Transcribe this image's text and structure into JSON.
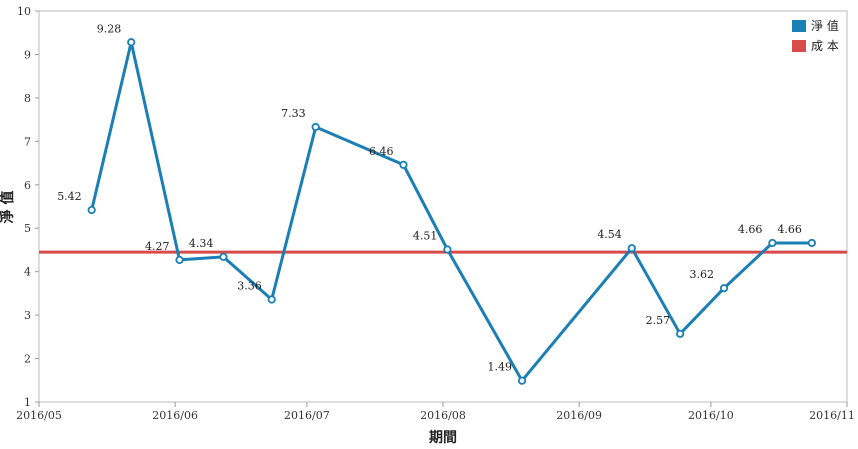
{
  "chart_data": {
    "type": "line",
    "xlabel": "期間",
    "ylabel": "淨 值",
    "ylim": [
      1,
      10
    ],
    "yticks": [
      1,
      2,
      3,
      4,
      5,
      6,
      7,
      8,
      9,
      10
    ],
    "xlim": [
      "2016-05-01",
      "2016-11-01"
    ],
    "xticks": [
      "2016/05",
      "2016/06",
      "2016/07",
      "2016/08",
      "2016/09",
      "2016/10",
      "2016/11"
    ],
    "grid": false,
    "legend_position": "top-right",
    "legend": [
      {
        "label": "淨 值",
        "color": "#1a7fb5"
      },
      {
        "label": "成 本",
        "color": "#d94a4a"
      }
    ],
    "series": [
      {
        "name": "淨 值",
        "color": "#1a7fb5",
        "x": [
          "2016-05-13",
          "2016-05-22",
          "2016-06-02",
          "2016-06-12",
          "2016-06-23",
          "2016-07-03",
          "2016-07-23",
          "2016-08-02",
          "2016-08-19",
          "2016-09-13",
          "2016-09-24",
          "2016-10-04",
          "2016-10-15",
          "2016-10-24"
        ],
        "y": [
          5.42,
          9.28,
          4.27,
          4.34,
          3.36,
          7.33,
          6.46,
          4.51,
          1.49,
          4.54,
          2.57,
          3.62,
          4.66,
          4.66
        ],
        "labels": [
          "5.42",
          "9.28",
          "4.27",
          "4.34",
          "3.36",
          "7.33",
          "6.46",
          "4.51",
          "1.49",
          "4.54",
          "2.57",
          "3.62",
          "4.66",
          "4.66"
        ]
      },
      {
        "name": "成 本",
        "color": "#d94a4a",
        "y_constant": 4.45
      }
    ]
  }
}
